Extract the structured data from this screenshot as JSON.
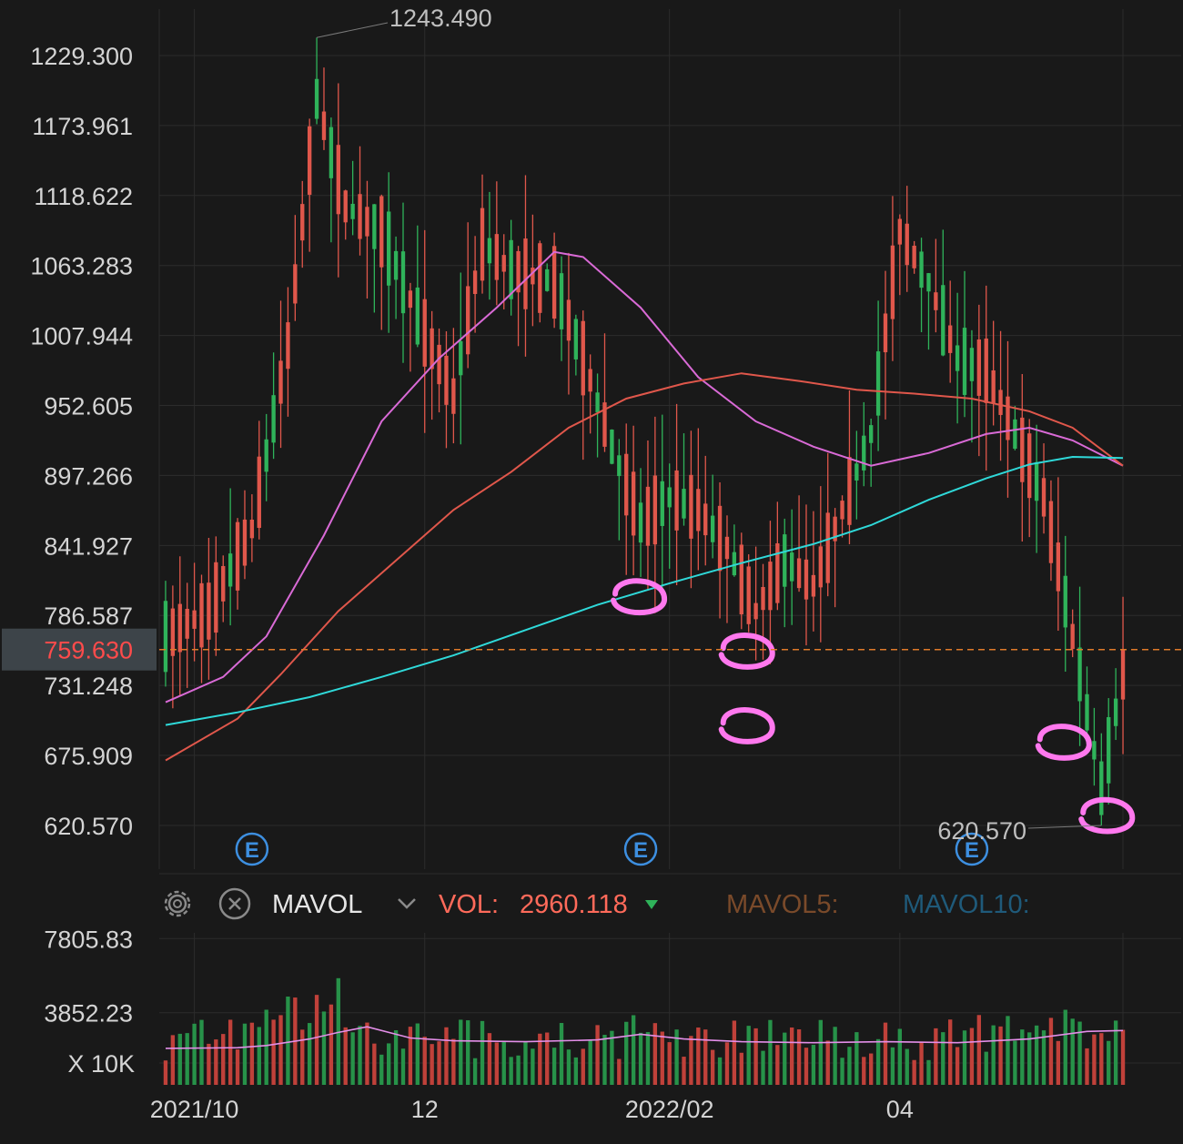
{
  "colors": {
    "background": "#191919",
    "grid": "#2c2c2c",
    "axis_text": "#d4d4d4",
    "up": "#e0574b",
    "down": "#2fb35a",
    "current_price": "#ff4b4b",
    "current_line": "#e07a2a",
    "ma_pink": "#d96ad6",
    "ma_red": "#e0574b",
    "ma_cyan": "#2fd9d9",
    "mavol_line": "#e38ee8",
    "vol_label": "#ff6a5a",
    "mavol5_label": "#7a4a2a",
    "mavol10_label": "#1f5a7a",
    "annotation": "#ff78ee",
    "event_badge": "#3d8fe0"
  },
  "chart_data": [
    {
      "type": "candlestick",
      "title": "",
      "ylim": [
        586,
        1266
      ],
      "y_ticks": [
        "1229.300",
        "1173.961",
        "1118.622",
        "1063.283",
        "1007.944",
        "952.605",
        "897.266",
        "841.927",
        "786.587",
        "731.248",
        "675.909",
        "620.570"
      ],
      "y_tick_values": [
        1229.3,
        1173.961,
        1118.622,
        1063.283,
        1007.944,
        952.605,
        897.266,
        841.927,
        786.587,
        731.248,
        675.909,
        620.57
      ],
      "x_labels": [
        "2021/10",
        "12",
        "2022/02",
        "04"
      ],
      "x_label_positions": [
        4,
        36,
        70,
        102
      ],
      "bar_count": 134,
      "high_marker": {
        "label": "1243.490",
        "value": 1243.49,
        "index": 21
      },
      "low_marker": {
        "label": "620.570",
        "value": 620.57,
        "index": 130
      },
      "current_price": {
        "label": "759.630",
        "value": 759.63
      },
      "events": [
        {
          "label": "E",
          "index": 12
        },
        {
          "label": "E",
          "index": 66
        },
        {
          "label": "E",
          "index": 112
        }
      ],
      "moving_averages": [
        {
          "name": "MA-pink",
          "color_key": "ma_pink",
          "points": [
            [
              0,
              718
            ],
            [
              8,
              738
            ],
            [
              14,
              770
            ],
            [
              22,
              850
            ],
            [
              30,
              940
            ],
            [
              38,
              990
            ],
            [
              46,
              1030
            ],
            [
              54,
              1074
            ],
            [
              58,
              1070
            ],
            [
              66,
              1030
            ],
            [
              74,
              975
            ],
            [
              82,
              940
            ],
            [
              90,
              920
            ],
            [
              98,
              905
            ],
            [
              106,
              915
            ],
            [
              114,
              930
            ],
            [
              120,
              935
            ],
            [
              126,
              925
            ],
            [
              133,
              905
            ]
          ]
        },
        {
          "name": "MA-red",
          "color_key": "ma_red",
          "points": [
            [
              0,
              672
            ],
            [
              10,
              705
            ],
            [
              16,
              740
            ],
            [
              24,
              790
            ],
            [
              32,
              830
            ],
            [
              40,
              870
            ],
            [
              48,
              900
            ],
            [
              56,
              935
            ],
            [
              64,
              958
            ],
            [
              72,
              970
            ],
            [
              80,
              978
            ],
            [
              88,
              972
            ],
            [
              96,
              965
            ],
            [
              104,
              962
            ],
            [
              112,
              958
            ],
            [
              120,
              948
            ],
            [
              126,
              935
            ],
            [
              133,
              905
            ]
          ]
        },
        {
          "name": "MA-cyan",
          "color_key": "ma_cyan",
          "points": [
            [
              0,
              700
            ],
            [
              10,
              710
            ],
            [
              20,
              722
            ],
            [
              30,
              738
            ],
            [
              40,
              755
            ],
            [
              50,
              775
            ],
            [
              60,
              795
            ],
            [
              70,
              812
            ],
            [
              80,
              828
            ],
            [
              90,
              843
            ],
            [
              98,
              858
            ],
            [
              106,
              878
            ],
            [
              114,
              895
            ],
            [
              120,
              906
            ],
            [
              126,
              912
            ],
            [
              133,
              911
            ]
          ]
        }
      ],
      "annotation_marks": [
        {
          "value": 800,
          "index": 66
        },
        {
          "value": 757,
          "index": 81
        },
        {
          "value": 698,
          "index": 81
        },
        {
          "value": 685,
          "index": 125
        },
        {
          "value": 627,
          "index": 131
        }
      ]
    },
    {
      "type": "bar",
      "title": "MAVOL",
      "ylim": [
        0,
        8500
      ],
      "y_ticks": [
        "7805.83",
        "3852.23"
      ],
      "y_tick_values": [
        7805.83,
        3852.23
      ],
      "unit_label": "X 10K",
      "series_count": 134,
      "mavol_points": [
        [
          0,
          1950
        ],
        [
          10,
          1980
        ],
        [
          14,
          2100
        ],
        [
          20,
          2450
        ],
        [
          24,
          2800
        ],
        [
          28,
          3100
        ],
        [
          34,
          2500
        ],
        [
          40,
          2350
        ],
        [
          50,
          2300
        ],
        [
          60,
          2400
        ],
        [
          66,
          2700
        ],
        [
          72,
          2450
        ],
        [
          80,
          2300
        ],
        [
          90,
          2250
        ],
        [
          100,
          2300
        ],
        [
          110,
          2250
        ],
        [
          120,
          2450
        ],
        [
          128,
          2850
        ],
        [
          133,
          2900
        ]
      ]
    }
  ],
  "volume_panel": {
    "indicator_name": "MAVOL",
    "vol_label": "VOL:",
    "vol_value": "2960.118",
    "mavol5_label": "MAVOL5:",
    "mavol10_label": "MAVOL10:",
    "settings_icon": "gear-icon",
    "close_icon": "close-icon",
    "dropdown_icon": "chevron-down-icon",
    "vol_trend_icon": "triangle-down-icon"
  }
}
